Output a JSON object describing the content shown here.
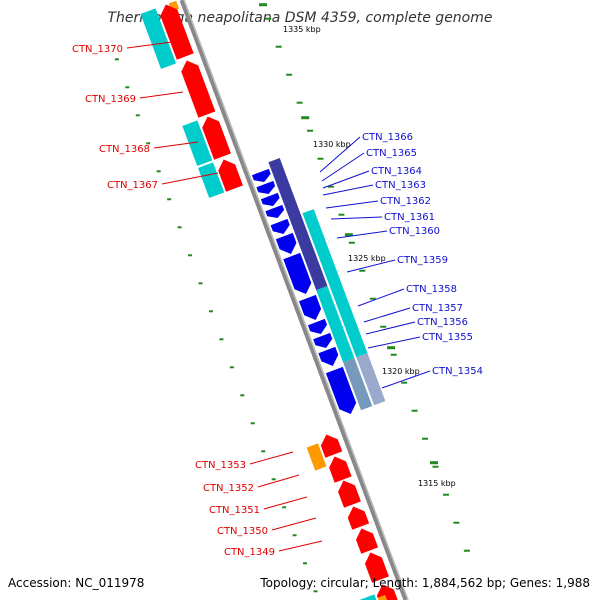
{
  "title": "Thermotoga neapolitana DSM 4359, complete genome",
  "footer": {
    "accession": "Accession: NC_011978",
    "summary": "Topology: circular; Length: 1,884,562 bp; Genes: 1,988"
  },
  "colors": {
    "reverse_label": "#e00000",
    "forward_label": "#1010d0",
    "reverse_gene": "#ff0000",
    "forward_gene": "#0000ee",
    "cyan_feature": "#00cccc",
    "purple_feature": "#3a3aa0",
    "orange_feature": "#ff9900",
    "backbone": "#888888",
    "tick": "#228822"
  },
  "scale_labels": [
    "1335 kbp",
    "1330 kbp",
    "1325 kbp",
    "1320 kbp",
    "1315 kbp"
  ],
  "reverse_genes": [
    "CTN_1370",
    "CTN_1369",
    "CTN_1368",
    "CTN_1367",
    "CTN_1353",
    "CTN_1352",
    "CTN_1351",
    "CTN_1350",
    "CTN_1349"
  ],
  "forward_genes": [
    "CTN_1366",
    "CTN_1365",
    "CTN_1364",
    "CTN_1363",
    "CTN_1362",
    "CTN_1361",
    "CTN_1360",
    "CTN_1359",
    "CTN_1358",
    "CTN_1357",
    "CTN_1356",
    "CTN_1355",
    "CTN_1354"
  ]
}
